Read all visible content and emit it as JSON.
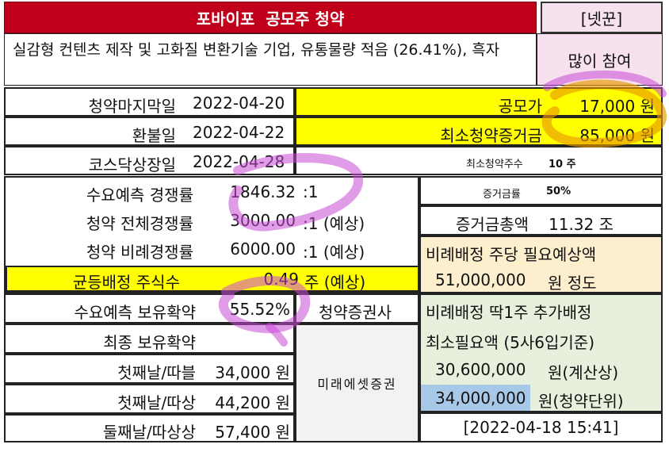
{
  "header": {
    "title": "포바이포  공모주 청약",
    "tag": "[넷꾼]"
  },
  "summary": {
    "description": "실감형 컨텐츠 제작 및 고화질 변환기술 기업, 유통물량 적음 (26.41%), 흑자",
    "opinion": "많이 참여"
  },
  "schedule": {
    "deadline_label": "청약마지막일",
    "deadline_value": "2022-04-20",
    "refund_label": "환불일",
    "refund_value": "2022-04-22",
    "listing_label": "코스닥상장일",
    "listing_value": "2022-04-28"
  },
  "pricing": {
    "offer_price_label": "공모가",
    "offer_price_value": "17,000 원",
    "min_deposit_label": "최소청약증거금",
    "min_deposit_value": "85,000 원",
    "min_shares_label": "최소청약주수",
    "min_shares_value": "10 주",
    "margin_rate_label": "증거금률",
    "margin_rate_value": "50%",
    "total_deposit_label": "증거금총액",
    "total_deposit_value": "11.32 조"
  },
  "competition": {
    "demand_label": "수요예측 경쟁률",
    "demand_value": "1846.32",
    "demand_unit": ":1",
    "total_label": "청약 전체경쟁률",
    "total_value": "3000.00",
    "total_unit": ":1 (예상)",
    "proportional_label": "청약 비례경쟁률",
    "proportional_value": "6000.00",
    "proportional_unit": ":1 (예상)",
    "equal_label": "균등배정 주식수",
    "equal_value": "0.49",
    "equal_unit": "주 (예상)"
  },
  "proportional_needed": {
    "label": "비례배정 주당 필요예상액",
    "amount": "51,000,000",
    "unit": "원 정도"
  },
  "lockup": {
    "demand_label": "수요예측 보유확약",
    "demand_value": "55.52%",
    "final_label": "최종 보유확약",
    "final_value": ""
  },
  "broker": {
    "label": "청약증권사",
    "name": "미래에셋증권"
  },
  "extra": {
    "line1": "비례배정 딱1주 추가배정",
    "line2": "최소필요액 (5사6입기준)",
    "calc_amount": "30,600,000",
    "calc_unit": "원(계산상)",
    "unit_amount": "34,000,000",
    "unit_unit": "원(청약단위)"
  },
  "price_forecast": {
    "first_double_label": "첫째날/따블",
    "first_double_value": "34,000 원",
    "first_ddasang_label": "첫째날/따상",
    "first_ddasang_value": "44,200 원",
    "second_ddasang_label": "둘째날/따상상",
    "second_ddasang_value": "57,400 원"
  },
  "footer": {
    "timestamp": "[2022-04-18 15:41]"
  },
  "colors": {
    "header_red": "#c0001b",
    "highlight_yellow": "#ffff00",
    "peach": "#fdeecd",
    "green": "#e7efdd",
    "blue": "#a8c8e8",
    "tag_pink": "#f7e1ee",
    "marker_purple": "#c84bd6",
    "marker_orange": "#e89a00"
  }
}
